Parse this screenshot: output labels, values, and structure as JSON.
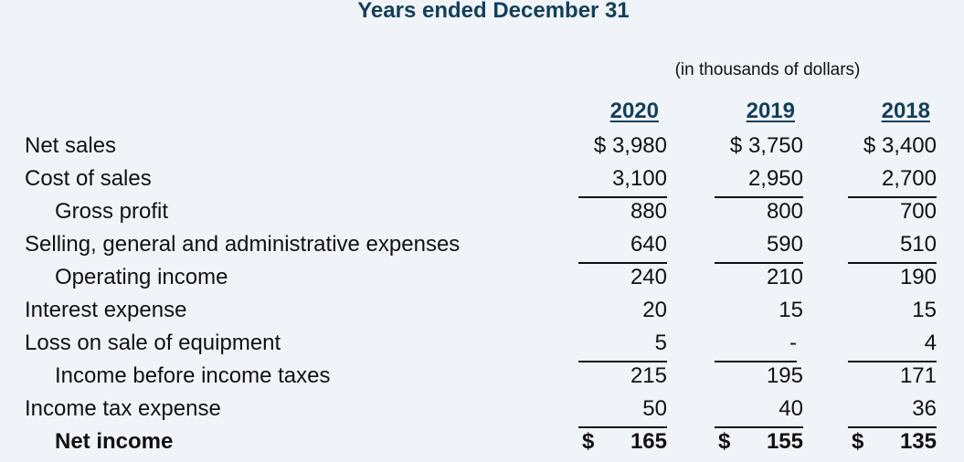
{
  "header": {
    "title": "Years ended December 31",
    "units": "(in thousands of dollars)"
  },
  "years": [
    "2020",
    "2019",
    "2018"
  ],
  "rows": [
    {
      "label": "Net sales",
      "values": [
        "$ 3,980",
        "$ 3,750",
        "$ 3,400"
      ]
    },
    {
      "label": "Cost of sales",
      "values": [
        "3,100",
        "2,950",
        "2,700"
      ]
    },
    {
      "label": "Gross profit",
      "values": [
        "880",
        "800",
        "700"
      ]
    },
    {
      "label": "Selling, general and administrative expenses",
      "values": [
        "640",
        "590",
        "510"
      ]
    },
    {
      "label": "Operating income",
      "values": [
        "240",
        "210",
        "190"
      ]
    },
    {
      "label": "Interest expense",
      "values": [
        "20",
        "15",
        "15"
      ]
    },
    {
      "label": "Loss on sale of equipment",
      "values": [
        "5",
        "-",
        "4"
      ]
    },
    {
      "label": "Income before income taxes",
      "values": [
        "215",
        "195",
        "171"
      ]
    },
    {
      "label": "Income tax expense",
      "values": [
        "50",
        "40",
        "36"
      ]
    },
    {
      "label": "Net income",
      "currency": "$",
      "values": [
        "165",
        "155",
        "135"
      ]
    }
  ]
}
